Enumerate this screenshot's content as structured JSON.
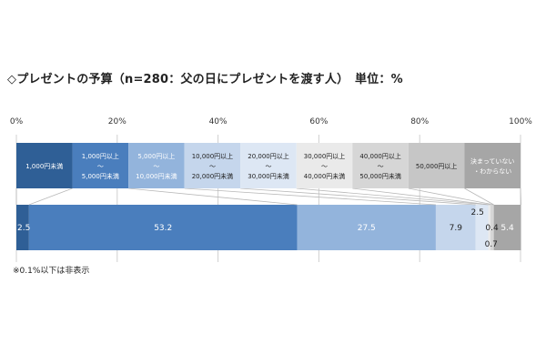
{
  "page": {
    "title": "◇プレゼントの予算（n=280：父の日にプレゼントを渡す人）　単位：%",
    "footnote": "※0.1%以下は非表示"
  },
  "chart_data": {
    "type": "bar",
    "orientation": "horizontal-stacked-100",
    "title": "◇プレゼントの予算（n=280：父の日にプレゼントを渡す人）　単位：%",
    "xlim": [
      0,
      100
    ],
    "xticks": [
      0,
      20,
      40,
      60,
      80,
      100
    ],
    "xtick_labels": [
      "0%",
      "20%",
      "40%",
      "60%",
      "80%",
      "100%"
    ],
    "grid": true,
    "legend_placement": "top",
    "series": [
      {
        "name": [
          "1,000円未満"
        ],
        "value": 2.5,
        "label": "2.5",
        "color": "#2f5f96",
        "label_color": "#ffffff"
      },
      {
        "name": [
          "1,000円以上",
          "〜",
          "5,000円未満"
        ],
        "value": 53.2,
        "label": "53.2",
        "color": "#4a7ebd",
        "label_color": "#ffffff"
      },
      {
        "name": [
          "5,000円以上",
          "〜",
          "10,000円未満"
        ],
        "value": 27.5,
        "label": "27.5",
        "color": "#93b4dc",
        "label_color": "#ffffff"
      },
      {
        "name": [
          "10,000円以上",
          "〜",
          "20,000円未満"
        ],
        "value": 7.9,
        "label": "7.9",
        "color": "#c5d6ec",
        "label_color": "#222222"
      },
      {
        "name": [
          "20,000円以上",
          "〜",
          "30,000円未満"
        ],
        "value": 2.5,
        "label": "2.5",
        "color": "#dde7f4",
        "label_color": "#222222"
      },
      {
        "name": [
          "30,000円以上",
          "〜",
          "40,000円未満"
        ],
        "value": 0.4,
        "label": "0.4",
        "color": "#eaeaea",
        "label_color": "#222222"
      },
      {
        "name": [
          "40,000円以上",
          "〜",
          "50,000円未満"
        ],
        "value": 0.7,
        "label": "0.7",
        "color": "#d6d6d6",
        "label_color": "#222222"
      },
      {
        "name": [
          "50,000円以上"
        ],
        "value": 0.0,
        "label": "",
        "color": "#c6c6c6",
        "label_color": "#222222"
      },
      {
        "name": [
          "決まっていない",
          "・わからない"
        ],
        "value": 5.4,
        "label": "5.4",
        "color": "#a6a6a6",
        "label_color": "#ffffff"
      }
    ]
  },
  "colors": {
    "grid": "#d0d0d0",
    "connector": "#b8b8b8",
    "legend_text_light": "#ffffff",
    "legend_text_dark": "#222222"
  }
}
